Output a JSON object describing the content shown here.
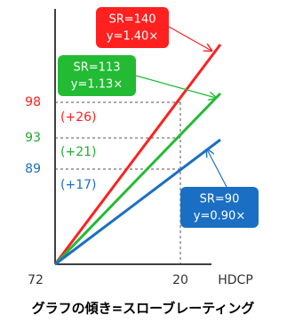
{
  "axis": {
    "y_origin": "72",
    "x_mark": "20",
    "x_label": "HDCP"
  },
  "levels": [
    {
      "value": "98",
      "gain": "(+26)"
    },
    {
      "value": "93",
      "gain": "(+21)"
    },
    {
      "value": "89",
      "gain": "(+17)"
    }
  ],
  "callouts": [
    {
      "line1": "SR=140",
      "line2": "y=1.40×"
    },
    {
      "line1": "SR=113",
      "line2": "y=1.13×"
    },
    {
      "line1": "SR=90",
      "line2": "y=0.90×"
    }
  ],
  "caption": "グラフの傾き=スローブレーティング"
}
